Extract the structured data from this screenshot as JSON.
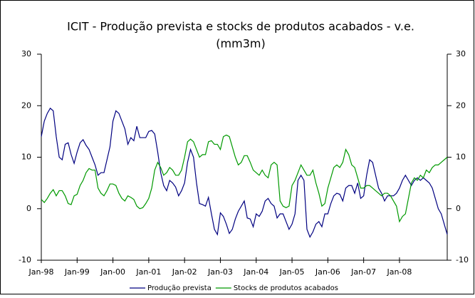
{
  "chart_data": {
    "type": "line",
    "title": "ICIT - Produção prevista e stocks de produtos acabados - v.e.",
    "subtitle": "(mm3m)",
    "categories": [
      "Jan-98",
      null,
      null,
      null,
      null,
      null,
      null,
      null,
      null,
      null,
      null,
      null,
      "Jan-99",
      null,
      null,
      null,
      null,
      null,
      null,
      null,
      null,
      null,
      null,
      null,
      "Jan-00",
      null,
      null,
      null,
      null,
      null,
      null,
      null,
      null,
      null,
      null,
      null,
      "Jan-01",
      null,
      null,
      null,
      null,
      null,
      null,
      null,
      null,
      null,
      null,
      null,
      "Jan-02",
      null,
      null,
      null,
      null,
      null,
      null,
      null,
      null,
      null,
      null,
      null,
      "Jan-03",
      null,
      null,
      null,
      null,
      null,
      null,
      null,
      null,
      null,
      null,
      null,
      "Jan-04",
      null,
      null,
      null,
      null,
      null,
      null,
      null,
      null,
      null,
      null,
      null,
      "Jan-05",
      null,
      null,
      null,
      null,
      null,
      null,
      null,
      null,
      null,
      null,
      null,
      "Jan-06",
      null,
      null,
      null,
      null,
      null,
      null,
      null,
      null,
      null,
      null,
      null,
      "Jan-07",
      null,
      null,
      null,
      null,
      null,
      null,
      null,
      null,
      null,
      null,
      null,
      "Jan-08",
      null,
      null,
      null,
      null,
      null,
      null,
      null,
      null,
      null,
      null,
      null,
      null,
      null,
      null,
      null,
      null
    ],
    "series": [
      {
        "name": "Produção prevista",
        "color": "#000080",
        "values": [
          14,
          17,
          18.5,
          19.5,
          19,
          14,
          10,
          9.5,
          12.5,
          12.8,
          10.5,
          8.8,
          11,
          12.8,
          13.4,
          12.3,
          11.5,
          10,
          8.5,
          6.5,
          7,
          7,
          9.5,
          12,
          17,
          19,
          18.5,
          17,
          15.5,
          12.5,
          13.8,
          13.2,
          16,
          13.8,
          13.8,
          13.8,
          15,
          15.2,
          14.5,
          11,
          7,
          4.5,
          3.5,
          5.5,
          5,
          4.2,
          2.5,
          3.5,
          5,
          9,
          11.5,
          10,
          5,
          1,
          0.8,
          0.5,
          2.2,
          -1,
          -4,
          -5,
          -0.8,
          -1.5,
          -3,
          -4.8,
          -4,
          -2,
          -0.5,
          0.5,
          1.5,
          -1.8,
          -2,
          -3.5,
          -1,
          -1.5,
          -0.5,
          1.5,
          2,
          1,
          0.5,
          -1.8,
          -1,
          -1,
          -2.5,
          -4,
          -3,
          -1,
          5.5,
          6.5,
          5.5,
          -4,
          -5.5,
          -4.5,
          -3,
          -2.5,
          -3.5,
          -1,
          -1,
          1,
          2.5,
          3,
          2.8,
          1.5,
          4,
          4.5,
          4.5,
          3,
          5,
          2,
          2.5,
          6.5,
          9.5,
          9,
          6.5,
          4,
          3,
          1.5,
          2.5,
          2.5,
          2.5,
          3,
          4,
          5.5,
          6.5,
          5.5,
          4.5,
          5.5,
          6,
          5.5,
          6,
          5.5,
          5,
          4,
          2,
          0,
          -1,
          -3,
          -5
        ]
      },
      {
        "name": "Stocks de produtos acabados",
        "color": "#009900",
        "values": [
          1.8,
          1.2,
          2,
          3,
          3.7,
          2.5,
          3.5,
          3.5,
          2.5,
          1,
          0.8,
          2.5,
          2.8,
          4.5,
          5.5,
          7,
          7.8,
          7.5,
          7.5,
          4,
          3,
          2.5,
          3.5,
          4.8,
          4.8,
          4.5,
          3,
          2,
          1.5,
          2.5,
          2.2,
          1.8,
          0.5,
          0,
          0.2,
          1,
          2,
          4,
          7.5,
          9,
          8,
          6.5,
          7,
          8,
          7.5,
          6.5,
          6.5,
          7.5,
          10,
          13,
          13.5,
          13,
          11.5,
          10,
          10.5,
          10.5,
          13,
          13.2,
          12.5,
          12.5,
          11.5,
          14,
          14.3,
          14,
          12,
          10,
          8.5,
          9,
          10.3,
          10.3,
          9,
          7.5,
          7,
          6.5,
          7.5,
          6.5,
          6,
          8.5,
          9,
          8.5,
          1.5,
          0.5,
          0.2,
          0.5,
          4.5,
          5.5,
          7,
          8.5,
          7.5,
          6.5,
          6.5,
          7.5,
          5,
          3,
          0.5,
          1,
          4,
          6,
          8,
          8.5,
          8,
          9,
          11.5,
          10.5,
          8.5,
          8,
          6,
          4,
          4,
          4.5,
          4.5,
          4,
          3.5,
          3,
          2.5,
          3,
          3,
          2.5,
          1.5,
          0.5,
          -2.5,
          -1.5,
          -1,
          2,
          5,
          6,
          5.5,
          6.5,
          6,
          7.5,
          7,
          8,
          8.5,
          8.5,
          9,
          9.5,
          10
        ]
      }
    ],
    "ylim": [
      -10,
      30
    ],
    "yticks": [
      -10,
      0,
      10,
      20,
      30
    ],
    "y2lim": [
      -10,
      30
    ],
    "y2ticks": [
      -10,
      0,
      10,
      20,
      30
    ],
    "grid": false,
    "legend": "bottom"
  }
}
